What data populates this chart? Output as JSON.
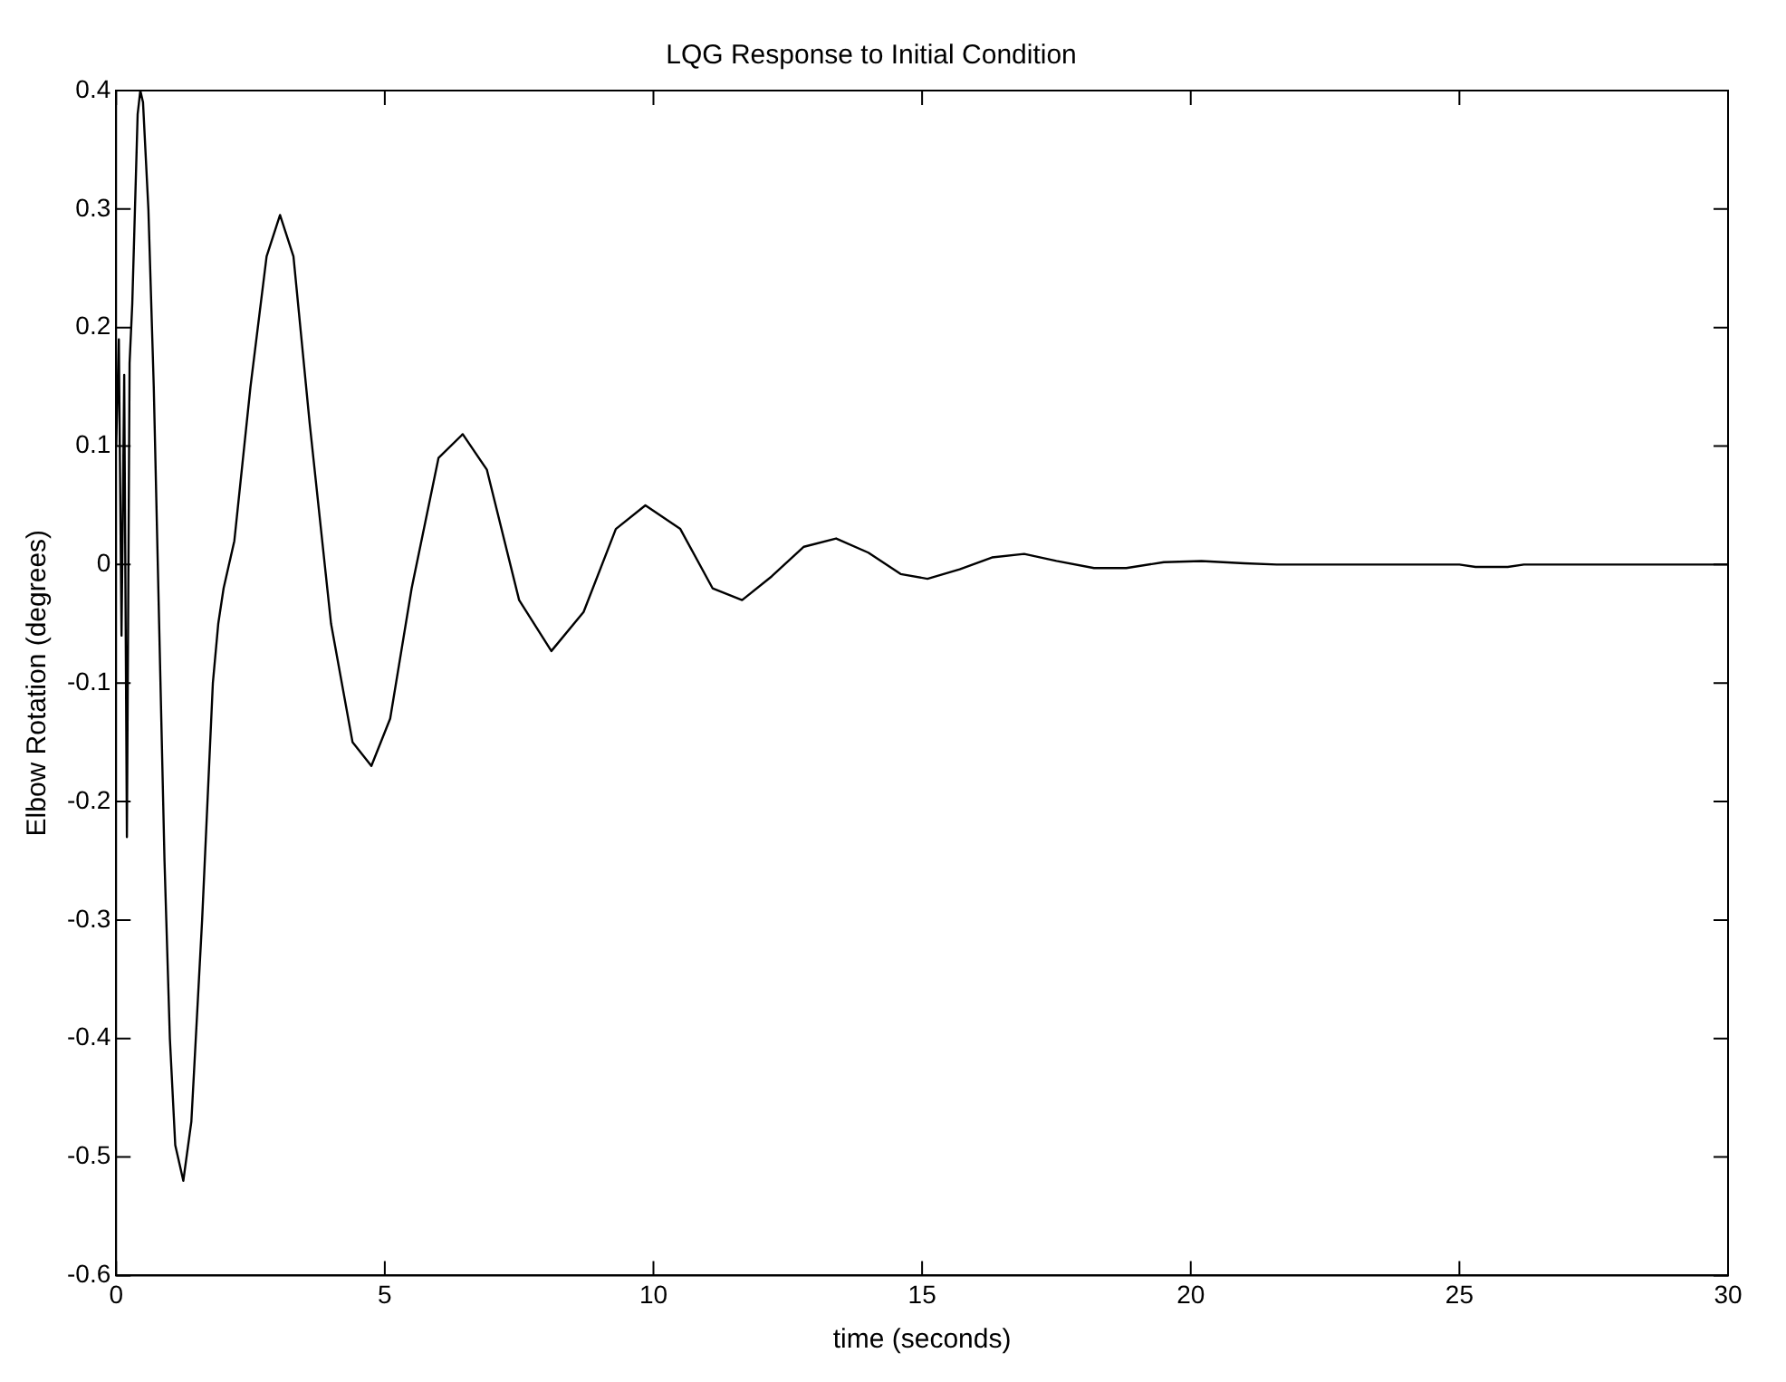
{
  "chart_data": {
    "type": "line",
    "title": "LQG Response to Initial Condition",
    "xlabel": "time (seconds)",
    "ylabel": "Elbow Rotation (degrees)",
    "x": [
      0,
      0.05,
      0.1,
      0.15,
      0.2,
      0.25,
      0.3,
      0.35,
      0.4,
      0.45,
      0.5,
      0.6,
      0.7,
      0.8,
      0.9,
      1.0,
      1.1,
      1.25,
      1.4,
      1.6,
      1.8,
      1.9,
      2.0,
      2.2,
      2.5,
      2.8,
      3.05,
      3.3,
      3.6,
      4.0,
      4.4,
      4.75,
      5.1,
      5.5,
      6.0,
      6.45,
      6.9,
      7.5,
      8.1,
      8.7,
      9.3,
      9.85,
      10.5,
      11.1,
      11.65,
      12.2,
      12.8,
      13.4,
      14.0,
      14.6,
      15.1,
      15.7,
      16.3,
      16.9,
      17.5,
      18.2,
      18.8,
      19.5,
      20.2,
      21.0,
      21.6,
      25.0,
      25.3,
      25.9,
      26.2,
      30.0
    ],
    "series": [
      {
        "color": "#000000",
        "values": [
          0.1,
          0.19,
          -0.06,
          0.16,
          -0.23,
          0.17,
          0.22,
          0.3,
          0.38,
          0.4,
          0.39,
          0.3,
          0.15,
          -0.05,
          -0.25,
          -0.4,
          -0.49,
          -0.52,
          -0.47,
          -0.3,
          -0.1,
          -0.05,
          -0.02,
          0.02,
          0.15,
          0.26,
          0.295,
          0.26,
          0.12,
          -0.05,
          -0.15,
          -0.17,
          -0.13,
          -0.02,
          0.09,
          0.11,
          0.08,
          -0.03,
          -0.073,
          -0.04,
          0.03,
          0.05,
          0.03,
          -0.02,
          -0.03,
          -0.01,
          0.015,
          0.022,
          0.01,
          -0.008,
          -0.012,
          -0.004,
          0.006,
          0.009,
          0.003,
          -0.003,
          -0.003,
          0.002,
          0.003,
          0.001,
          0,
          0,
          -0.002,
          -0.002,
          0,
          0
        ]
      }
    ],
    "xlim": [
      0,
      30
    ],
    "xticks": [
      0,
      5,
      10,
      15,
      20,
      25,
      30
    ],
    "ylim": [
      -0.6,
      0.4
    ],
    "yticks": [
      -0.6,
      -0.5,
      -0.4,
      -0.3,
      -0.2,
      -0.1,
      0,
      0.1,
      0.2,
      0.3,
      0.4
    ],
    "grid": false,
    "legend": false,
    "marker": "none",
    "line_style": "solid"
  }
}
